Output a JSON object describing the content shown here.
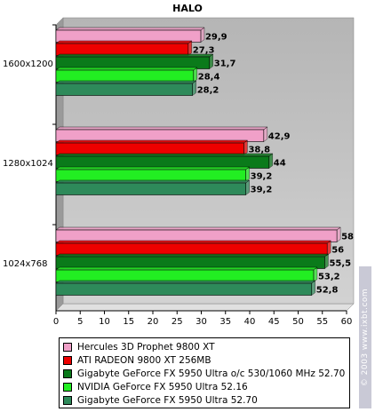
{
  "chart_data": {
    "type": "bar",
    "orientation": "horizontal",
    "title": "HALO",
    "categories": [
      "1600x1200",
      "1280x1024",
      "1024x768"
    ],
    "series": [
      {
        "name": "Hercules 3D Prophet 9800 XT",
        "color": "#f0a0c8",
        "values": [
          29.9,
          42.9,
          58
        ],
        "labels": [
          "29,9",
          "42,9",
          "58"
        ]
      },
      {
        "name": "ATI RADEON 9800 XT 256MB",
        "color": "#ee0000",
        "values": [
          27.3,
          38.8,
          56
        ],
        "labels": [
          "27,3",
          "38,8",
          "56"
        ]
      },
      {
        "name": "Gigabyte GeForce FX 5950 Ultra o/c 530/1060 MHz 52.70",
        "color": "#0a7a1a",
        "values": [
          31.7,
          44,
          55.5
        ],
        "labels": [
          "31,7",
          "44",
          "55,5"
        ]
      },
      {
        "name": "NVIDIA GeForce FX 5950 Ultra 52.16",
        "color": "#22ee22",
        "values": [
          28.4,
          39.2,
          53.2
        ],
        "labels": [
          "28,4",
          "39,2",
          "53,2"
        ]
      },
      {
        "name": "Gigabyte GeForce FX 5950 Ultra 52.70",
        "color": "#2e8a5a",
        "values": [
          28.2,
          39.2,
          52.8
        ],
        "labels": [
          "28,2",
          "39,2",
          "52,8"
        ]
      }
    ],
    "xlim": [
      0,
      60
    ],
    "xticks": [
      0,
      5,
      10,
      15,
      20,
      25,
      30,
      35,
      40,
      45,
      50,
      55,
      60
    ],
    "grid": false,
    "legend_position": "bottom"
  },
  "watermark": "© 2003 www.ixbt.com"
}
